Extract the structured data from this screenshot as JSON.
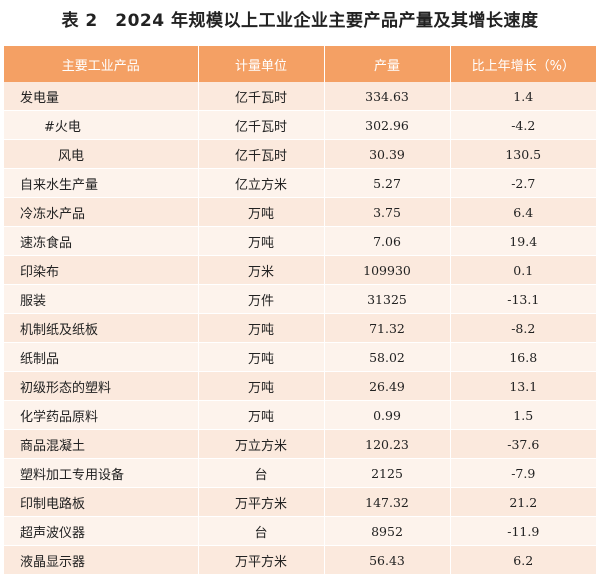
{
  "title": "表 2　2024 年规模以上工业企业主要产品产量及其增长速度",
  "headers": [
    "主要工业产品",
    "计量单位",
    "产量",
    "比上年增长（%）"
  ],
  "rows": [
    {
      "name": "发电量",
      "unit": "亿千瓦时",
      "output": "334.63",
      "growth": "1.4",
      "indent": 0
    },
    {
      "name": "#火电",
      "unit": "亿千瓦时",
      "output": "302.96",
      "growth": "-4.2",
      "indent": 1
    },
    {
      "name": "风电",
      "unit": "亿千瓦时",
      "output": "30.39",
      "growth": "130.5",
      "indent": 2
    },
    {
      "name": "自来水生产量",
      "unit": "亿立方米",
      "output": "5.27",
      "growth": "-2.7",
      "indent": 0
    },
    {
      "name": "冷冻水产品",
      "unit": "万吨",
      "output": "3.75",
      "growth": "6.4",
      "indent": 0
    },
    {
      "name": "速冻食品",
      "unit": "万吨",
      "output": "7.06",
      "growth": "19.4",
      "indent": 0
    },
    {
      "name": "印染布",
      "unit": "万米",
      "output": "109930",
      "growth": "0.1",
      "indent": 0
    },
    {
      "name": "服装",
      "unit": "万件",
      "output": "31325",
      "growth": "-13.1",
      "indent": 0
    },
    {
      "name": "机制纸及纸板",
      "unit": "万吨",
      "output": "71.32",
      "growth": "-8.2",
      "indent": 0
    },
    {
      "name": "纸制品",
      "unit": "万吨",
      "output": "58.02",
      "growth": "16.8",
      "indent": 0
    },
    {
      "name": "初级形态的塑料",
      "unit": "万吨",
      "output": "26.49",
      "growth": "13.1",
      "indent": 0
    },
    {
      "name": "化学药品原料",
      "unit": "万吨",
      "output": "0.99",
      "growth": "1.5",
      "indent": 0
    },
    {
      "name": "商品混凝土",
      "unit": "万立方米",
      "output": "120.23",
      "growth": "-37.6",
      "indent": 0
    },
    {
      "name": "塑料加工专用设备",
      "unit": "台",
      "output": "2125",
      "growth": "-7.9",
      "indent": 0
    },
    {
      "name": "印制电路板",
      "unit": "万平方米",
      "output": "147.32",
      "growth": "21.2",
      "indent": 0
    },
    {
      "name": "超声波仪器",
      "unit": "台",
      "output": "8952",
      "growth": "-11.9",
      "indent": 0
    },
    {
      "name": "液晶显示器",
      "unit": "万平方米",
      "output": "56.43",
      "growth": "6.2",
      "indent": 0
    }
  ]
}
